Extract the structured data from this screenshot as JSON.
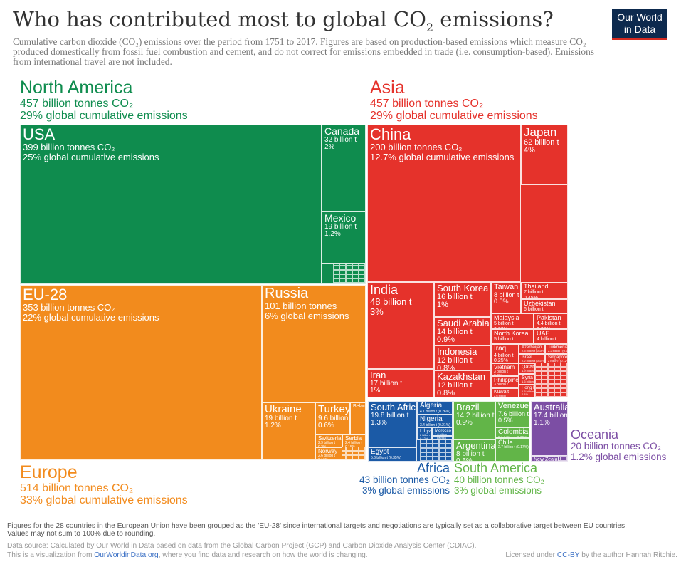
{
  "header": {
    "title": "Who has contributed most to global CO",
    "title_sub": "2",
    "title_end": " emissions?",
    "subtitle": "Cumulative carbon dioxide (CO₂) emissions over the period from 1751 to 2017. Figures are based on production-based emissions which measure CO₂ produced domestically from fossil fuel combustion and cement, and do not correct for emissions embedded in trade (i.e. consumption-based). Emissions from international travel are not included.",
    "logo_line1": "Our World",
    "logo_line2": "in Data"
  },
  "chart_data": {
    "type": "treemap",
    "title": "Who has contributed most to global CO2 emissions?",
    "unit": "billion tonnes CO2",
    "colors": {
      "North America": "#0f8c4e",
      "Europe": "#f28b1d",
      "Asia": "#e5322b",
      "Africa": "#1b5aa6",
      "South America": "#62b548",
      "Oceania": "#7c4ea4"
    },
    "regions": [
      {
        "name": "North America",
        "value": "457 billion tonnes CO₂",
        "pct": "29% global cumulative emissions"
      },
      {
        "name": "Asia",
        "value": "457 billion tonnes CO₂",
        "pct": "29% global cumulative emissions"
      },
      {
        "name": "Europe",
        "value": "514 billion tonnes CO₂",
        "pct": "33% global cumulative emissions"
      },
      {
        "name": "Africa",
        "value": "43 billion tonnes CO₂",
        "pct": "3% global emissions"
      },
      {
        "name": "South America",
        "value": "40 billion tonnes CO₂",
        "pct": "3% global emissions"
      },
      {
        "name": "Oceania",
        "value": "20 billion tonnes CO₂",
        "pct": "1.2% global emissions"
      }
    ],
    "countries": [
      {
        "region": "North America",
        "name": "USA",
        "value": "399 billion tonnes CO₂",
        "pct": "25% global cumulative emissions"
      },
      {
        "region": "North America",
        "name": "Canada",
        "value": "32 billion t",
        "pct": "2%"
      },
      {
        "region": "North America",
        "name": "Mexico",
        "value": "19 billion t",
        "pct": "1.2%"
      },
      {
        "region": "Europe",
        "name": "EU-28",
        "value": "353 billion tonnes CO₂",
        "pct": "22% global cumulative emissions"
      },
      {
        "region": "Europe",
        "name": "Russia",
        "value": "101 billion tonnes",
        "pct": "6% global emissions"
      },
      {
        "region": "Europe",
        "name": "Ukraine",
        "value": "19 billion t",
        "pct": "1.2%"
      },
      {
        "region": "Europe",
        "name": "Turkey",
        "value": "9.6 billion t",
        "pct": "0.6%"
      },
      {
        "region": "Europe",
        "name": "Belarus",
        "value": "",
        "pct": ""
      },
      {
        "region": "Europe",
        "name": "Switzerland",
        "value": "2.9 billion t",
        "pct": "0.2%"
      },
      {
        "region": "Europe",
        "name": "Serbia",
        "value": "2.4 billion t",
        "pct": "0.15%"
      },
      {
        "region": "Europe",
        "name": "Norway",
        "value": "2.6 billion t",
        "pct": "0.16%"
      },
      {
        "region": "Asia",
        "name": "China",
        "value": "200 billion tonnes CO₂",
        "pct": "12.7% global cumulative emissions"
      },
      {
        "region": "Asia",
        "name": "Japan",
        "value": "62 billion t",
        "pct": "4%"
      },
      {
        "region": "Asia",
        "name": "India",
        "value": "48 billion t",
        "pct": "3%"
      },
      {
        "region": "Asia",
        "name": "Iran",
        "value": "17 billion t",
        "pct": "1%"
      },
      {
        "region": "Asia",
        "name": "South Korea",
        "value": "16 billion t",
        "pct": "1%"
      },
      {
        "region": "Asia",
        "name": "Saudi Arabia",
        "value": "14 billion t",
        "pct": "0.9%"
      },
      {
        "region": "Asia",
        "name": "Indonesia",
        "value": "12 billion t",
        "pct": "0.8%"
      },
      {
        "region": "Asia",
        "name": "Kazakhstan",
        "value": "12 billion t",
        "pct": "0.8%"
      },
      {
        "region": "Asia",
        "name": "Taiwan",
        "value": "8 billion t",
        "pct": "0.5%"
      },
      {
        "region": "Asia",
        "name": "Thailand",
        "value": "7 billion t",
        "pct": "0.45%"
      },
      {
        "region": "Asia",
        "name": "Uzbekistan",
        "value": "6 billion t",
        "pct": "0.4%"
      },
      {
        "region": "Asia",
        "name": "Malaysia",
        "value": "5 billion t",
        "pct": "0.32%"
      },
      {
        "region": "Asia",
        "name": "Pakistan",
        "value": "4.4 billion t",
        "pct": "0.28%"
      },
      {
        "region": "Asia",
        "name": "North Korea",
        "value": "5 billion t",
        "pct": "0.32%"
      },
      {
        "region": "Asia",
        "name": "UAE",
        "value": "4 billion t",
        "pct": "0.26%"
      },
      {
        "region": "Asia",
        "name": "Iraq",
        "value": "4 billion t",
        "pct": "0.25%"
      },
      {
        "region": "Asia",
        "name": "Azerbaijan",
        "value": "2.5 billion t (0.16%)",
        "pct": ""
      },
      {
        "region": "Asia",
        "name": "Turkmenistan",
        "value": "2.2 billion t (0.14%)",
        "pct": ""
      },
      {
        "region": "Asia",
        "name": "Israel",
        "value": "2.2 billion t (0.14%)",
        "pct": ""
      },
      {
        "region": "Asia",
        "name": "Singapore",
        "value": "2 billion t (0.12%)",
        "pct": ""
      },
      {
        "region": "Asia",
        "name": "Vietnam",
        "value": "3 billion t",
        "pct": "0.2%"
      },
      {
        "region": "Asia",
        "name": "Philippines",
        "value": "3 billion t",
        "pct": "0.2%"
      },
      {
        "region": "Asia",
        "name": "Kuwait",
        "value": "2.6 billion t",
        "pct": "0.17%"
      },
      {
        "region": "Asia",
        "name": "Qatar",
        "value": "1.9 billion t",
        "pct": "0.12%"
      },
      {
        "region": "Asia",
        "name": "Syria",
        "value": "1.6 billion t",
        "pct": "0.1%"
      },
      {
        "region": "Asia",
        "name": "Hong Kong",
        "value": "1.5 billion t",
        "pct": "0.1%"
      },
      {
        "region": "Africa",
        "name": "South Africa",
        "value": "19.8 billion t",
        "pct": "1.3%"
      },
      {
        "region": "Africa",
        "name": "Egypt",
        "value": "5.6 billion t (0.35%)",
        "pct": ""
      },
      {
        "region": "Africa",
        "name": "Algeria",
        "value": "4.1 billion t (0.26%)",
        "pct": ""
      },
      {
        "region": "Africa",
        "name": "Nigeria",
        "value": "3.4 billion t (0.21%)",
        "pct": ""
      },
      {
        "region": "Africa",
        "name": "Libya",
        "value": "2 billion t",
        "pct": "0.12%"
      },
      {
        "region": "Africa",
        "name": "Morocco",
        "value": "1.8 billion t",
        "pct": "0.1%"
      },
      {
        "region": "Africa",
        "name": "Tunisia",
        "value": "",
        "pct": ""
      },
      {
        "region": "South America",
        "name": "Brazil",
        "value": "14.2 billion t",
        "pct": "0.9%"
      },
      {
        "region": "South America",
        "name": "Argentina",
        "value": "8 billion t",
        "pct": "0.5%"
      },
      {
        "region": "South America",
        "name": "Venezuela",
        "value": "7.6 billion t",
        "pct": "0.5%"
      },
      {
        "region": "South America",
        "name": "Colombia",
        "value": "3.1 billion t (0.2%)",
        "pct": ""
      },
      {
        "region": "South America",
        "name": "Chile",
        "value": "2.7 billion t (0.17%)",
        "pct": ""
      },
      {
        "region": "Oceania",
        "name": "Australia",
        "value": "17.4 billion t",
        "pct": "1.1%"
      },
      {
        "region": "Oceania",
        "name": "New Zealand",
        "value": "1 billion t (0.1%)",
        "pct": ""
      }
    ]
  },
  "footer": {
    "note1": "Figures for the 28 countries in the European Union have been grouped as the 'EU-28' since international targets and negotiations are typically set as a collaborative target between EU countries.",
    "note2": "Values may not sum to 100% due to rounding.",
    "source": "Data source: Calculated by Our World in Data based on data from the Global Carbon Project (GCP) and Carbon Dioxide Analysis Center (CDIAC).",
    "viz_pre": "This is a visualization from ",
    "viz_link": "OurWorldinData.org",
    "viz_post": ", where you find data and research on how the world is changing.",
    "lic_pre": "Licensed under ",
    "lic_link": "CC-BY",
    "lic_post": " by the author Hannah Ritchie."
  }
}
